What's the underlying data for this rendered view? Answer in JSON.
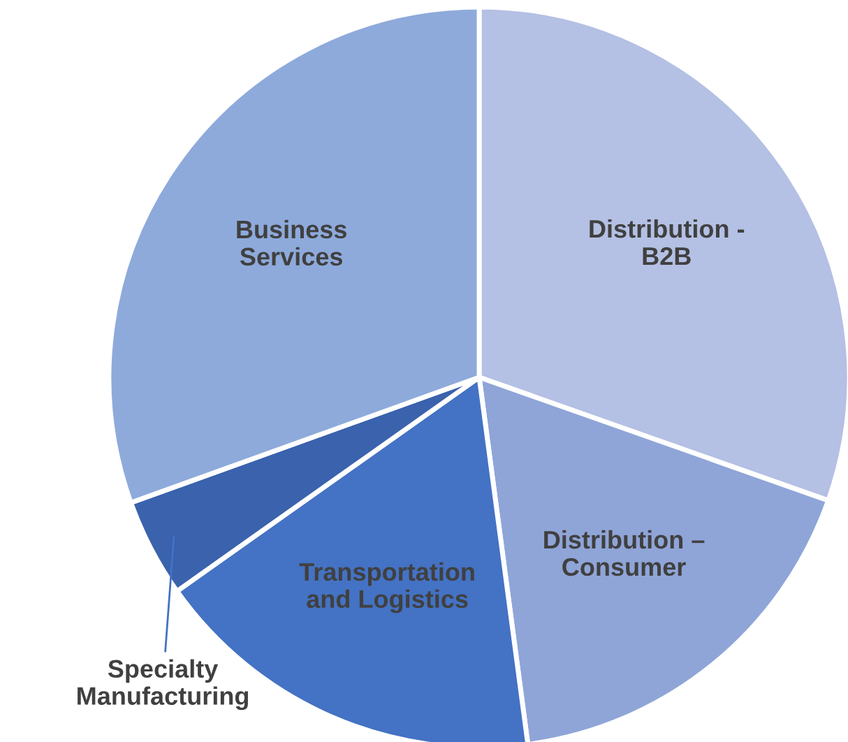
{
  "chart_data": {
    "type": "pie",
    "categories": [
      "Distribution - B2B",
      "Distribution – Consumer",
      "Transportation and Logistics",
      "Specialty Manufacturing",
      "Business Services"
    ],
    "values": [
      30.4,
      17.5,
      17.3,
      4.3,
      30.5
    ],
    "colors": [
      "#b4c0e4",
      "#8fa5d8",
      "#4472c4",
      "#3a62ad",
      "#8eaadb"
    ]
  }
}
